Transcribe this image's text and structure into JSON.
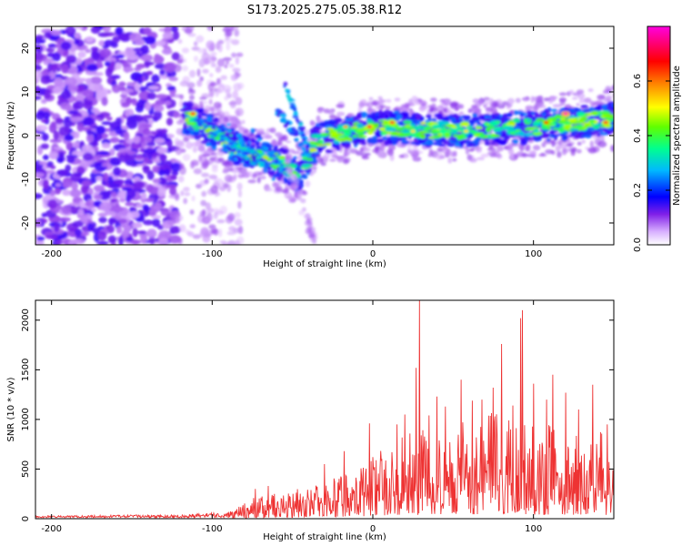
{
  "title": "S173.2025.275.05.38.R12",
  "chart_data": [
    {
      "type": "heatmap",
      "xlabel": "Height of straight line (km)",
      "ylabel": "Frequency (Hz)",
      "xlim": [
        -210,
        150
      ],
      "ylim": [
        -25,
        25
      ],
      "x_ticks": [
        -200,
        -100,
        0,
        100
      ],
      "y_ticks": [
        -20,
        -10,
        0,
        10,
        20
      ],
      "grid": false,
      "colorbar": {
        "label": "Normalized spectral amplitude",
        "range": [
          0.0,
          0.8
        ],
        "ticks": [
          0.0,
          0.2,
          0.4,
          0.6
        ],
        "colors": [
          "#ffffff",
          "#c080ff",
          "#6000e0",
          "#0000ff",
          "#00c0ff",
          "#00ff80",
          "#80ff00",
          "#ffff00",
          "#ff8000",
          "#ff0000",
          "#ff00ff"
        ]
      },
      "features": {
        "ridge_center": [
          {
            "x": -115,
            "y": 4
          },
          {
            "x": -100,
            "y": 1
          },
          {
            "x": -80,
            "y": -4
          },
          {
            "x": -60,
            "y": -6
          },
          {
            "x": -45,
            "y": -9
          },
          {
            "x": -35,
            "y": -1
          },
          {
            "x": -25,
            "y": 0
          },
          {
            "x": 0,
            "y": 2
          },
          {
            "x": 50,
            "y": 1
          },
          {
            "x": 100,
            "y": 2
          },
          {
            "x": 150,
            "y": 4
          }
        ],
        "peak_points": [
          {
            "x": -112,
            "y": 5,
            "v": 0.7
          },
          {
            "x": -17,
            "y": 2,
            "v": 0.55
          },
          {
            "x": -2,
            "y": 2,
            "v": 0.7
          },
          {
            "x": 12,
            "y": 3,
            "v": 0.7
          },
          {
            "x": 25,
            "y": 1,
            "v": 0.5
          },
          {
            "x": 58,
            "y": 1,
            "v": 0.5
          },
          {
            "x": 108,
            "y": 3,
            "v": 0.65
          },
          {
            "x": 120,
            "y": 5,
            "v": 0.78
          },
          {
            "x": 145,
            "y": 3,
            "v": 0.7
          }
        ]
      }
    },
    {
      "type": "line",
      "xlabel": "Height of straight line (km)",
      "ylabel": "SNR (10 * v/v)",
      "xlim": [
        -210,
        150
      ],
      "ylim": [
        0,
        2200
      ],
      "x_ticks": [
        -200,
        -100,
        0,
        100
      ],
      "y_ticks": [
        0,
        500,
        1000,
        1500,
        2000
      ],
      "grid": false,
      "color": "#ee3333",
      "envelope": [
        {
          "x": -210,
          "y": 20
        },
        {
          "x": -120,
          "y": 30
        },
        {
          "x": -90,
          "y": 60
        },
        {
          "x": -75,
          "y": 180
        },
        {
          "x": -50,
          "y": 250
        },
        {
          "x": -30,
          "y": 330
        },
        {
          "x": -10,
          "y": 420
        },
        {
          "x": 0,
          "y": 560
        },
        {
          "x": 20,
          "y": 750
        },
        {
          "x": 50,
          "y": 850
        },
        {
          "x": 80,
          "y": 950
        },
        {
          "x": 100,
          "y": 850
        },
        {
          "x": 150,
          "y": 750
        }
      ],
      "peaks": [
        {
          "x": -73,
          "y": 300
        },
        {
          "x": -65,
          "y": 330
        },
        {
          "x": -30,
          "y": 550
        },
        {
          "x": -18,
          "y": 680
        },
        {
          "x": -2,
          "y": 960
        },
        {
          "x": 15,
          "y": 950
        },
        {
          "x": 20,
          "y": 1050
        },
        {
          "x": 27,
          "y": 1520
        },
        {
          "x": 29,
          "y": 2200
        },
        {
          "x": 35,
          "y": 1040
        },
        {
          "x": 40,
          "y": 1230
        },
        {
          "x": 45,
          "y": 1130
        },
        {
          "x": 55,
          "y": 1400
        },
        {
          "x": 62,
          "y": 1190
        },
        {
          "x": 68,
          "y": 1200
        },
        {
          "x": 75,
          "y": 1320
        },
        {
          "x": 80,
          "y": 1760
        },
        {
          "x": 87,
          "y": 1140
        },
        {
          "x": 92,
          "y": 2020
        },
        {
          "x": 93,
          "y": 2100
        },
        {
          "x": 100,
          "y": 1360
        },
        {
          "x": 108,
          "y": 1200
        },
        {
          "x": 112,
          "y": 1450
        },
        {
          "x": 120,
          "y": 1270
        },
        {
          "x": 128,
          "y": 1100
        },
        {
          "x": 137,
          "y": 1350
        },
        {
          "x": 146,
          "y": 950
        }
      ]
    }
  ]
}
